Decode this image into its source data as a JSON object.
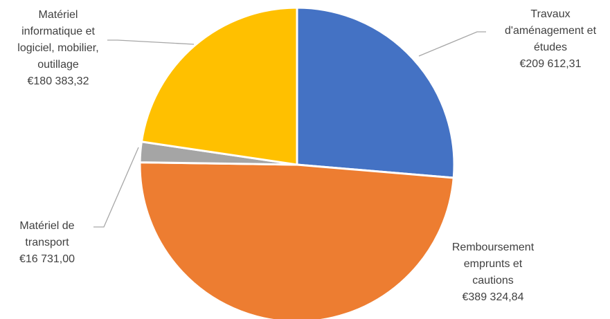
{
  "chart_data": {
    "type": "pie",
    "title": "",
    "currency": "€",
    "slices": [
      {
        "name": "Travaux d'aménagement et études",
        "label_lines": [
          "Travaux",
          "d'aménagement et",
          "études"
        ],
        "value": 209612.31,
        "value_label": "€209 612,31",
        "color": "#4472C4"
      },
      {
        "name": "Remboursement emprunts et cautions",
        "label_lines": [
          "Remboursement",
          "emprunts et",
          "cautions"
        ],
        "value": 389324.84,
        "value_label": "€389 324,84",
        "color": "#ED7D31"
      },
      {
        "name": "Matériel de transport",
        "label_lines": [
          "Matériel de",
          "transport"
        ],
        "value": 16731.0,
        "value_label": "€16 731,00",
        "color": "#A5A5A5"
      },
      {
        "name": "Matériel informatique et logiciel, mobilier, outillage",
        "label_lines": [
          "Matériel",
          "informatique et",
          "logiciel, mobilier,",
          "outillage"
        ],
        "value": 180383.32,
        "value_label": "€180 383,32",
        "color": "#FFC000"
      }
    ],
    "start": "12 o'clock",
    "direction": "clockwise",
    "legend": "none",
    "data_labels": "outside with leader lines"
  }
}
